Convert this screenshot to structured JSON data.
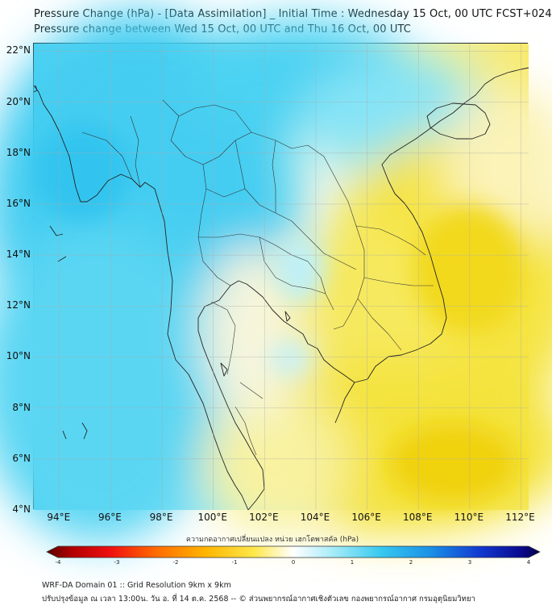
{
  "header": {
    "title_line1": "Pressure Change (hPa) - [Data Assimilation] _ Initial Time : Wednesday 15 Oct, 00 UTC FCST+024",
    "title_line2": "Pressure change between Wed 15 Oct, 00 UTC and Thu 16 Oct, 00 UTC"
  },
  "map": {
    "lat_range": [
      4,
      22.3
    ],
    "lon_range": [
      93,
      112.3
    ],
    "lat_ticks": [
      {
        "value": 4,
        "label": "4°N"
      },
      {
        "value": 6,
        "label": "6°N"
      },
      {
        "value": 8,
        "label": "8°N"
      },
      {
        "value": 10,
        "label": "10°N"
      },
      {
        "value": 12,
        "label": "12°N"
      },
      {
        "value": 14,
        "label": "14°N"
      },
      {
        "value": 16,
        "label": "16°N"
      },
      {
        "value": 18,
        "label": "18°N"
      },
      {
        "value": 20,
        "label": "20°N"
      },
      {
        "value": 22,
        "label": "22°N"
      }
    ],
    "lon_ticks": [
      {
        "value": 94,
        "label": "94°E"
      },
      {
        "value": 96,
        "label": "96°E"
      },
      {
        "value": 98,
        "label": "98°E"
      },
      {
        "value": 100,
        "label": "100°E"
      },
      {
        "value": 102,
        "label": "102°E"
      },
      {
        "value": 104,
        "label": "104°E"
      },
      {
        "value": 106,
        "label": "106°E"
      },
      {
        "value": 108,
        "label": "108°E"
      },
      {
        "value": 110,
        "label": "110°E"
      },
      {
        "value": 112,
        "label": "112°E"
      }
    ],
    "gridlines": true,
    "colors": {
      "decrease_max": "#f2d60a",
      "decrease_mid": "#f8ec62",
      "neutral": "#ffffff",
      "increase_mid": "#7fe6f6",
      "increase_max": "#2fc6ee"
    }
  },
  "colorbar": {
    "caption": "ความกดอากาศเปลี่ยนแปลง หน่วย เฮกโตพาสคัล (hPa)",
    "ticks": [
      "-4",
      "-3",
      "-2",
      "-1",
      "0",
      "1",
      "2",
      "3",
      "4"
    ],
    "range": [
      -4,
      4
    ]
  },
  "footer": {
    "line1": "WRF-DA Domain 01 :: Grid Resolution 9km x 9km",
    "line2": "ปรับปรุงข้อมูล ณ เวลา 13:00น. วัน อ. ที่ 14 ต.ค. 2568 -- © ส่วนพยากรณ์อากาศเชิงตัวเลข กองพยากรณ์อากาศ กรมอุตุนิยมวิทยา"
  }
}
